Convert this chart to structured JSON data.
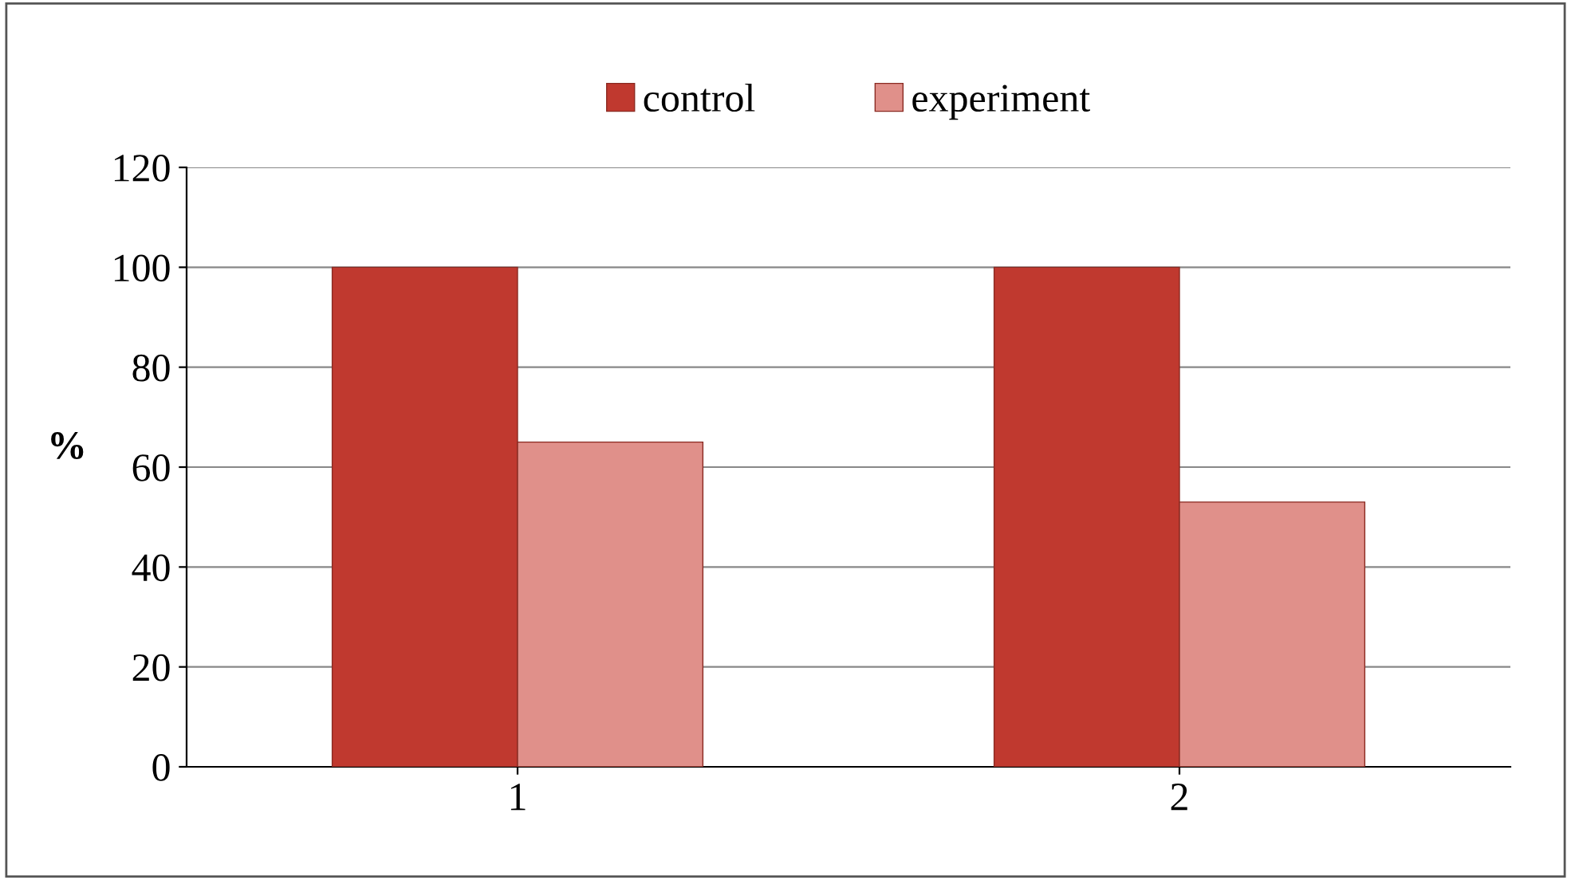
{
  "chart_data": {
    "type": "bar",
    "categories": [
      "1",
      "2"
    ],
    "ylabel": "%",
    "series": [
      {
        "name": "control",
        "color": "#c0392f",
        "values": [
          100,
          100
        ]
      },
      {
        "name": "experiment",
        "color": "#e0908a",
        "values": [
          65,
          53
        ]
      }
    ],
    "ylim": [
      0,
      120
    ],
    "yticks": [
      0,
      20,
      40,
      60,
      80,
      100,
      120
    ],
    "grid": "y",
    "legend": "top"
  }
}
